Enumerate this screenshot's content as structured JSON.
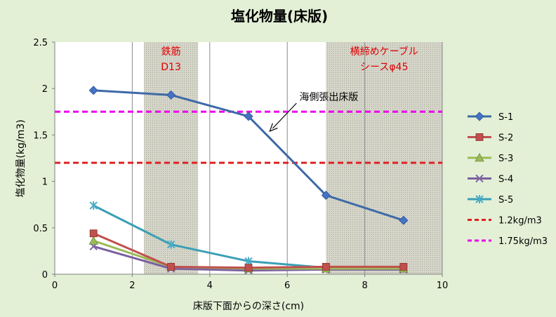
{
  "chart_data": {
    "type": "line",
    "title": "塩化物量(床版)",
    "xlabel": "床版下面からの深さ(cm)",
    "ylabel": "塩化物量(kg/m3)",
    "xlim": [
      0,
      10
    ],
    "ylim": [
      0,
      2.5
    ],
    "xticks": [
      0,
      2,
      4,
      6,
      8,
      10
    ],
    "yticks": [
      0,
      0.5,
      1,
      1.5,
      2,
      2.5
    ],
    "ytick_labels": [
      "0",
      "0.5",
      "1",
      "1.5",
      "2",
      "2.5"
    ],
    "grid": "vertical",
    "legend_position": "right",
    "series": [
      {
        "name": "S-1",
        "color": "#4472c4",
        "line_color": "#3d6aa8",
        "marker": "diamond",
        "x": [
          1,
          3,
          5,
          7,
          9
        ],
        "y": [
          1.98,
          1.93,
          1.7,
          0.85,
          0.58
        ]
      },
      {
        "name": "S-2",
        "color": "#c0504d",
        "line_color": "#c0504d",
        "marker": "square",
        "x": [
          1,
          3,
          5,
          7,
          9
        ],
        "y": [
          0.44,
          0.08,
          0.07,
          0.08,
          0.08
        ]
      },
      {
        "name": "S-3",
        "color": "#9bbb59",
        "line_color": "#9bbb59",
        "marker": "triangle",
        "x": [
          1,
          3,
          5,
          7,
          9
        ],
        "y": [
          0.36,
          0.08,
          0.06,
          0.06,
          0.06
        ]
      },
      {
        "name": "S-4",
        "color": "#8064a2",
        "line_color": "#7b5fa0",
        "marker": "x",
        "x": [
          1,
          3,
          5,
          7,
          9
        ],
        "y": [
          0.3,
          0.06,
          0.04,
          0.05,
          0.05
        ]
      },
      {
        "name": "S-5",
        "color": "#4bacc6",
        "line_color": "#3aa0b5",
        "marker": "star",
        "x": [
          1,
          3,
          5,
          7,
          9
        ],
        "y": [
          0.74,
          0.32,
          0.14,
          0.07,
          0.06
        ]
      }
    ],
    "reference_lines": [
      {
        "name": "1.2kg/m3",
        "y": 1.2,
        "color": "#e02020"
      },
      {
        "name": "1.75kg/m3",
        "y": 1.75,
        "color": "#ee00ee"
      }
    ],
    "bands": [
      {
        "x_range": [
          2.3,
          3.7
        ],
        "label_lines": [
          "鉄筋",
          "D13"
        ],
        "fill": "#d3d3c6"
      },
      {
        "x_range": [
          7.0,
          10.0
        ],
        "label_lines": [
          "横締めケーブル",
          "シースφ45"
        ],
        "fill": "#d3d3c6"
      }
    ],
    "annotation": {
      "text": "海側張出床版",
      "target": [
        5.55,
        1.54
      ]
    }
  }
}
